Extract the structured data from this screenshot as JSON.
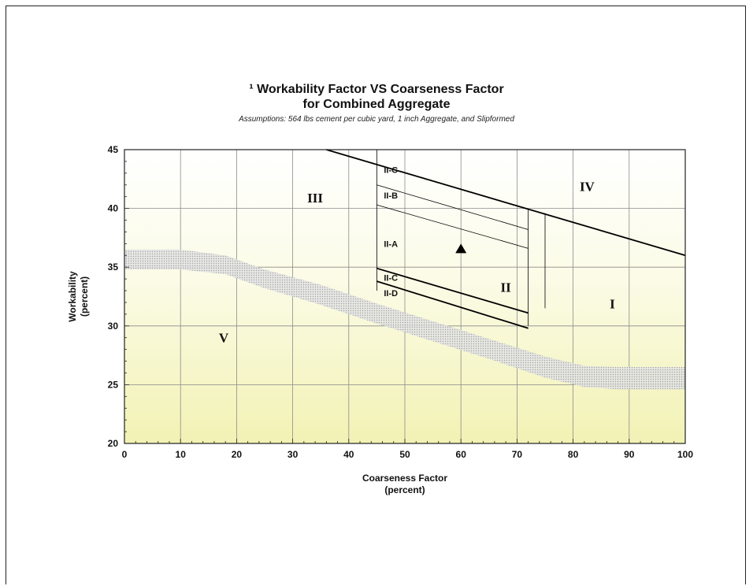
{
  "chart_data": {
    "type": "line",
    "title_line1": "¹ Workability Factor VS Coarseness Factor",
    "title_line2": "for Combined Aggregate",
    "subtitle": "Assumptions: 564 lbs cement per cubic yard, 1 inch Aggregate,  and Slipformed",
    "xlabel": "Coarseness Factor",
    "xlabel_unit": "(percent)",
    "ylabel": "Workability",
    "ylabel_unit": "(percent)",
    "xlim": [
      0,
      100
    ],
    "ylim": [
      20,
      45
    ],
    "xticks": [
      0,
      10,
      20,
      30,
      40,
      50,
      60,
      70,
      80,
      90,
      100
    ],
    "yticks": [
      20,
      25,
      30,
      35,
      40,
      45
    ],
    "grid": true,
    "colors": {
      "plot_bottom": "#f2f2b4",
      "plot_top": "#ffffff",
      "band": "#d6d6d6",
      "line": "#000000",
      "zone_ii": "#8a8a8a"
    },
    "boundaries": [
      {
        "id": "zone-iv-boundary",
        "x": [
          36,
          100
        ],
        "y": [
          45,
          36
        ],
        "weight": "heavy"
      },
      {
        "id": "zone-ii-left-edge",
        "x": [
          45,
          45
        ],
        "y": [
          45,
          33
        ],
        "weight": "thin"
      },
      {
        "id": "zone-ii-right-edge",
        "x": [
          72,
          72
        ],
        "y": [
          40,
          30
        ],
        "weight": "thin"
      },
      {
        "id": "zone-i-divider",
        "x": [
          75,
          75
        ],
        "y": [
          39.6,
          31.5
        ],
        "weight": "thin"
      },
      {
        "id": "ii-b-line",
        "x": [
          45,
          72
        ],
        "y": [
          42.0,
          38.2
        ],
        "weight": "thin"
      },
      {
        "id": "ii-a-line",
        "x": [
          45,
          72
        ],
        "y": [
          40.3,
          36.6
        ],
        "weight": "thin"
      },
      {
        "id": "ii-c-lower-line",
        "x": [
          45,
          72
        ],
        "y": [
          34.9,
          31.1
        ],
        "weight": "heavy"
      },
      {
        "id": "ii-d-line",
        "x": [
          45,
          72
        ],
        "y": [
          33.8,
          29.8
        ],
        "weight": "heavy"
      }
    ],
    "band": {
      "x": [
        0,
        10,
        18,
        25,
        35,
        45,
        55,
        65,
        75,
        82,
        88,
        100
      ],
      "upper": [
        36.5,
        36.5,
        36.0,
        34.8,
        33.5,
        31.9,
        30.4,
        28.9,
        27.4,
        26.6,
        26.5,
        26.5
      ],
      "lower": [
        34.8,
        34.8,
        34.4,
        33.2,
        31.8,
        30.2,
        28.7,
        27.2,
        25.6,
        24.8,
        24.6,
        24.6
      ]
    },
    "marker": {
      "x": 60,
      "y": 36.6,
      "shape": "triangle"
    },
    "zone_labels": [
      {
        "text": "I",
        "x": 87,
        "y": 31.9,
        "style": "roman"
      },
      {
        "text": "II",
        "x": 68,
        "y": 33.3,
        "style": "roman-gray"
      },
      {
        "text": "III",
        "x": 34,
        "y": 40.9,
        "style": "roman"
      },
      {
        "text": "IV",
        "x": 82.5,
        "y": 41.9,
        "style": "roman"
      },
      {
        "text": "V",
        "x": 17.7,
        "y": 29.0,
        "style": "roman"
      },
      {
        "text": "II-C",
        "x": 47.5,
        "y": 43.3,
        "style": "sub"
      },
      {
        "text": "II-B",
        "x": 47.5,
        "y": 41.1,
        "style": "sub"
      },
      {
        "text": "II-A",
        "x": 47.5,
        "y": 37.0,
        "style": "sub"
      },
      {
        "text": "II-C",
        "x": 47.5,
        "y": 34.1,
        "style": "sub"
      },
      {
        "text": "II-D",
        "x": 47.5,
        "y": 32.8,
        "style": "sub"
      }
    ]
  }
}
